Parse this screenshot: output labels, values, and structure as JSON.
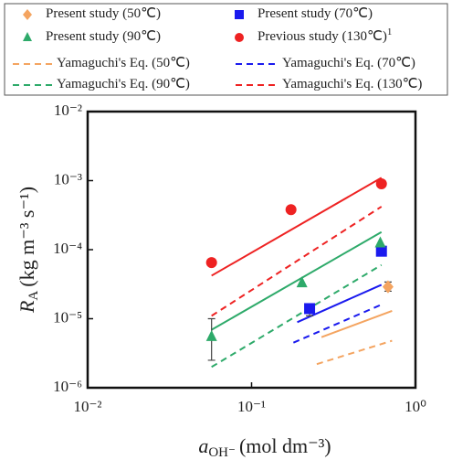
{
  "chart_data": {
    "type": "scatter",
    "xlabel": {
      "symbol": "a",
      "subscript": "OH⁻",
      "unit": "(mol dm⁻³)"
    },
    "ylabel": {
      "symbol": "R",
      "subscript": "A",
      "unit": "(kg m⁻³ s⁻¹)"
    },
    "xscale": "log",
    "yscale": "log",
    "xlim": [
      0.01,
      1
    ],
    "ylim": [
      1e-06,
      0.01
    ],
    "xticks": [
      {
        "value": 0.01,
        "label": "10⁻²"
      },
      {
        "value": 0.1,
        "label": "10⁻¹"
      },
      {
        "value": 1,
        "label": "10⁰"
      }
    ],
    "yticks": [
      {
        "value": 1e-06,
        "label": "10⁻⁶"
      },
      {
        "value": 1e-05,
        "label": "10⁻⁵"
      },
      {
        "value": 0.0001,
        "label": "10⁻⁴"
      },
      {
        "value": 0.001,
        "label": "10⁻³"
      },
      {
        "value": 0.01,
        "label": "10⁻²"
      }
    ],
    "legend": "top",
    "series": [
      {
        "name": "Present study (50℃)",
        "color": "#f4a460",
        "marker": "diamond",
        "x": [
          0.68
        ],
        "values": [
          2.9e-05
        ],
        "error_low": [
          2.5e-05
        ],
        "error_high": [
          3.4e-05
        ]
      },
      {
        "name": "Present study (70℃)",
        "color": "#1a1aee",
        "marker": "square",
        "x": [
          0.226,
          0.62
        ],
        "values": [
          1.4e-05,
          9.5e-05
        ],
        "error_low": [
          1.1e-05,
          null
        ],
        "error_high": [
          1.6e-05,
          null
        ]
      },
      {
        "name": "Present study (90℃)",
        "color": "#2eaa6a",
        "marker": "triangle",
        "x": [
          0.057,
          0.203,
          0.61
        ],
        "values": [
          5.5e-06,
          3.3e-05,
          0.000125
        ],
        "error_low": [
          2.5e-06,
          null,
          null
        ],
        "error_high": [
          1e-05,
          null,
          null
        ]
      },
      {
        "name": "Previous study (130℃)",
        "reference": "1",
        "color": "#ee2222",
        "marker": "circle",
        "x": [
          0.057,
          0.174,
          0.62
        ],
        "values": [
          6.5e-05,
          0.00038,
          0.0009
        ]
      },
      {
        "name": "Yamaguchi's Eq. (50℃)",
        "color": "#f4a460",
        "line": "dashed",
        "x": [
          0.25,
          0.72
        ],
        "values": [
          2.2e-06,
          4.8e-06
        ]
      },
      {
        "name": "Yamaguchi's Eq. (70℃)",
        "color": "#1a1aee",
        "line": "dashed",
        "x": [
          0.18,
          0.62
        ],
        "values": [
          4.5e-06,
          1.6e-05
        ]
      },
      {
        "name": "Yamaguchi's Eq. (90℃)",
        "color": "#2eaa6a",
        "line": "dashed",
        "x": [
          0.057,
          0.62
        ],
        "values": [
          2e-06,
          6e-05
        ]
      },
      {
        "name": "Yamaguchi's Eq. (130℃)",
        "color": "#ee2222",
        "line": "dashed",
        "x": [
          0.057,
          0.62
        ],
        "values": [
          1.1e-05,
          0.00042
        ]
      },
      {
        "color": "#f4a460",
        "line": "solid",
        "x": [
          0.267,
          0.72
        ],
        "values": [
          5.4e-06,
          1.3e-05
        ]
      },
      {
        "color": "#1a1aee",
        "line": "solid",
        "x": [
          0.19,
          0.62
        ],
        "values": [
          8.9e-06,
          3.1e-05
        ]
      },
      {
        "color": "#2eaa6a",
        "line": "solid",
        "x": [
          0.057,
          0.62
        ],
        "values": [
          6.9e-06,
          0.00018
        ]
      },
      {
        "color": "#ee2222",
        "line": "solid",
        "x": [
          0.057,
          0.62
        ],
        "values": [
          4.2e-05,
          0.0011
        ]
      }
    ]
  }
}
